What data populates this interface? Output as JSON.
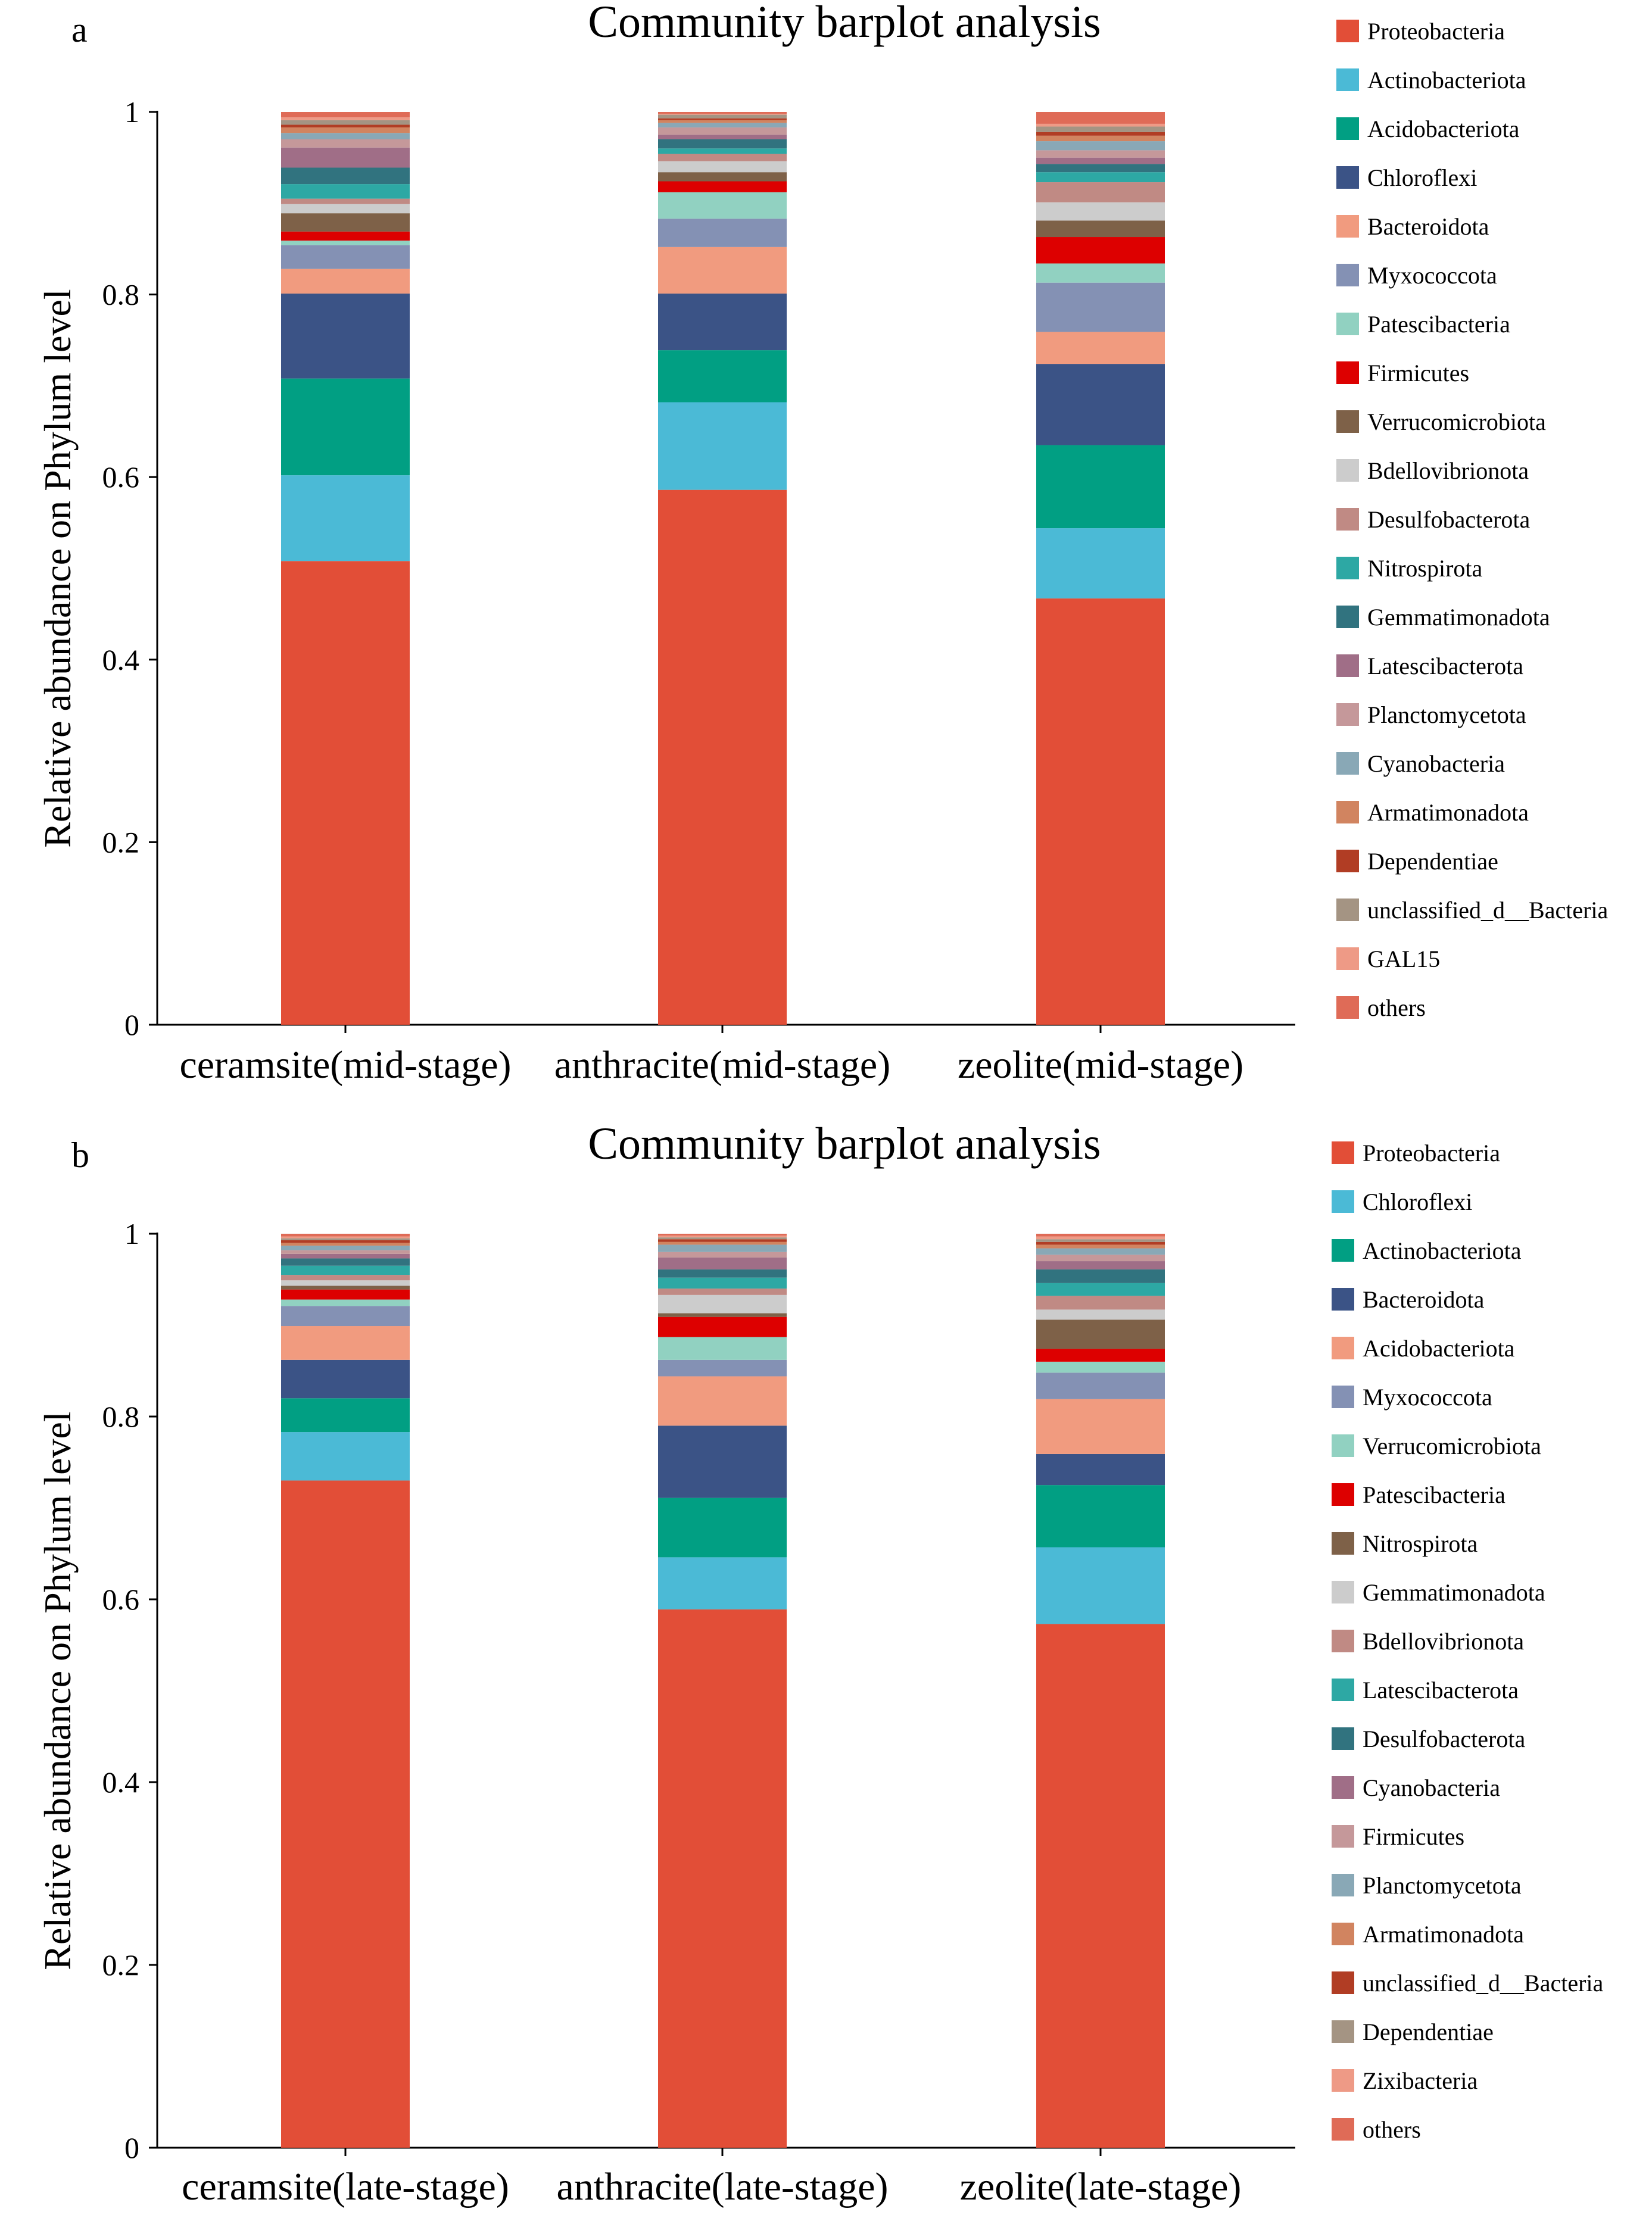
{
  "chart_data": [
    {
      "type": "bar",
      "stacked": true,
      "panel_label": "a",
      "title": "Community barplot analysis",
      "xlabel": "",
      "ylabel": "Relative abundance on Phylum level",
      "ylim": [
        0,
        1
      ],
      "yticks": [
        "0",
        "0.2",
        "0.4",
        "0.6",
        "0.8",
        "1"
      ],
      "categories": [
        "ceramsite(mid-stage)",
        "anthracite(mid-stage)",
        "zeolite(mid-stage)"
      ],
      "legend_position": "right",
      "series": [
        {
          "name": "Proteobacteria",
          "color": "#e24e37",
          "values": [
            0.508,
            0.586,
            0.467
          ]
        },
        {
          "name": "Actinobacteriota",
          "color": "#4bbad6",
          "values": [
            0.094,
            0.096,
            0.077
          ]
        },
        {
          "name": "Acidobacteriota",
          "color": "#019f83",
          "values": [
            0.106,
            0.057,
            0.091
          ]
        },
        {
          "name": "Chloroflexi",
          "color": "#3b5386",
          "values": [
            0.093,
            0.062,
            0.089
          ]
        },
        {
          "name": "Bacteroidota",
          "color": "#f19b7f",
          "values": [
            0.027,
            0.051,
            0.035
          ]
        },
        {
          "name": "Myxococcota",
          "color": "#8491b4",
          "values": [
            0.026,
            0.031,
            0.054
          ]
        },
        {
          "name": "Patescibacteria",
          "color": "#91d1c1",
          "values": [
            0.005,
            0.029,
            0.021
          ]
        },
        {
          "name": "Firmicutes",
          "color": "#dd0000",
          "values": [
            0.01,
            0.012,
            0.029
          ]
        },
        {
          "name": "Verrucomicrobiota",
          "color": "#7e6148",
          "values": [
            0.02,
            0.01,
            0.018
          ]
        },
        {
          "name": "Bdellovibrionota",
          "color": "#cccccc",
          "values": [
            0.01,
            0.012,
            0.02
          ]
        },
        {
          "name": "Desulfobacterota",
          "color": "#c08a84",
          "values": [
            0.006,
            0.008,
            0.022
          ]
        },
        {
          "name": "Nitrospirota",
          "color": "#2da8a4",
          "values": [
            0.016,
            0.006,
            0.011
          ]
        },
        {
          "name": "Gemmatimonadota",
          "color": "#31737f",
          "values": [
            0.018,
            0.01,
            0.009
          ]
        },
        {
          "name": "Latescibacterota",
          "color": "#a06e87",
          "values": [
            0.022,
            0.005,
            0.007
          ]
        },
        {
          "name": "Planctomycetota",
          "color": "#c5989a",
          "values": [
            0.009,
            0.008,
            0.008
          ]
        },
        {
          "name": "Cyanobacteria",
          "color": "#89a8b6",
          "values": [
            0.007,
            0.005,
            0.01
          ]
        },
        {
          "name": "Armatimonadota",
          "color": "#d18460",
          "values": [
            0.006,
            0.003,
            0.006
          ]
        },
        {
          "name": "Dependentiae",
          "color": "#b13d24",
          "values": [
            0.003,
            0.002,
            0.004
          ]
        },
        {
          "name": "unclassified_d__Bacteria",
          "color": "#a49483",
          "values": [
            0.005,
            0.004,
            0.006
          ]
        },
        {
          "name": "GAL15",
          "color": "#ee9a86",
          "values": [
            0.003,
            0.001,
            0.003
          ]
        },
        {
          "name": "others",
          "color": "#df6b57",
          "values": [
            0.006,
            0.002,
            0.013
          ]
        }
      ]
    },
    {
      "type": "bar",
      "stacked": true,
      "panel_label": "b",
      "title": "Community barplot analysis",
      "xlabel": "",
      "ylabel": "Relative abundance on Phylum level",
      "ylim": [
        0,
        1
      ],
      "yticks": [
        "0",
        "0.2",
        "0.4",
        "0.6",
        "0.8",
        "1"
      ],
      "categories": [
        "ceramsite(late-stage)",
        "anthracite(late-stage)",
        "zeolite(late-stage)"
      ],
      "legend_position": "right",
      "series": [
        {
          "name": "Proteobacteria",
          "color": "#e24e37",
          "values": [
            0.73,
            0.589,
            0.573
          ]
        },
        {
          "name": "Chloroflexi",
          "color": "#4bbad6",
          "values": [
            0.053,
            0.057,
            0.084
          ]
        },
        {
          "name": "Actinobacteriota",
          "color": "#019f83",
          "values": [
            0.037,
            0.065,
            0.068
          ]
        },
        {
          "name": "Bacteroidota",
          "color": "#3b5386",
          "values": [
            0.042,
            0.079,
            0.034
          ]
        },
        {
          "name": "Acidobacteriota",
          "color": "#f19b7f",
          "values": [
            0.037,
            0.054,
            0.06
          ]
        },
        {
          "name": "Myxococcota",
          "color": "#8491b4",
          "values": [
            0.022,
            0.018,
            0.029
          ]
        },
        {
          "name": "Verrucomicrobiota",
          "color": "#91d1c1",
          "values": [
            0.007,
            0.025,
            0.012
          ]
        },
        {
          "name": "Patescibacteria",
          "color": "#dd0000",
          "values": [
            0.011,
            0.022,
            0.014
          ]
        },
        {
          "name": "Nitrospirota",
          "color": "#7e6148",
          "values": [
            0.004,
            0.004,
            0.032
          ]
        },
        {
          "name": "Gemmatimonadota",
          "color": "#cccccc",
          "values": [
            0.006,
            0.02,
            0.011
          ]
        },
        {
          "name": "Bdellovibrionota",
          "color": "#c08a84",
          "values": [
            0.006,
            0.007,
            0.015
          ]
        },
        {
          "name": "Latescibacterota",
          "color": "#2da8a4",
          "values": [
            0.01,
            0.012,
            0.014
          ]
        },
        {
          "name": "Desulfobacterota",
          "color": "#31737f",
          "values": [
            0.008,
            0.009,
            0.015
          ]
        },
        {
          "name": "Cyanobacteria",
          "color": "#a06e87",
          "values": [
            0.005,
            0.013,
            0.009
          ]
        },
        {
          "name": "Firmicutes",
          "color": "#c5989a",
          "values": [
            0.004,
            0.006,
            0.007
          ]
        },
        {
          "name": "Planctomycetota",
          "color": "#89a8b6",
          "values": [
            0.005,
            0.008,
            0.007
          ]
        },
        {
          "name": "Armatimonadota",
          "color": "#d18460",
          "values": [
            0.003,
            0.003,
            0.004
          ]
        },
        {
          "name": "unclassified_d__Bacteria",
          "color": "#b13d24",
          "values": [
            0.003,
            0.003,
            0.003
          ]
        },
        {
          "name": "Dependentiae",
          "color": "#a49483",
          "values": [
            0.002,
            0.002,
            0.003
          ]
        },
        {
          "name": "Zixibacteria",
          "color": "#ee9a86",
          "values": [
            0.002,
            0.002,
            0.003
          ]
        },
        {
          "name": "others",
          "color": "#df6b57",
          "values": [
            0.003,
            0.002,
            0.003
          ]
        }
      ]
    }
  ]
}
